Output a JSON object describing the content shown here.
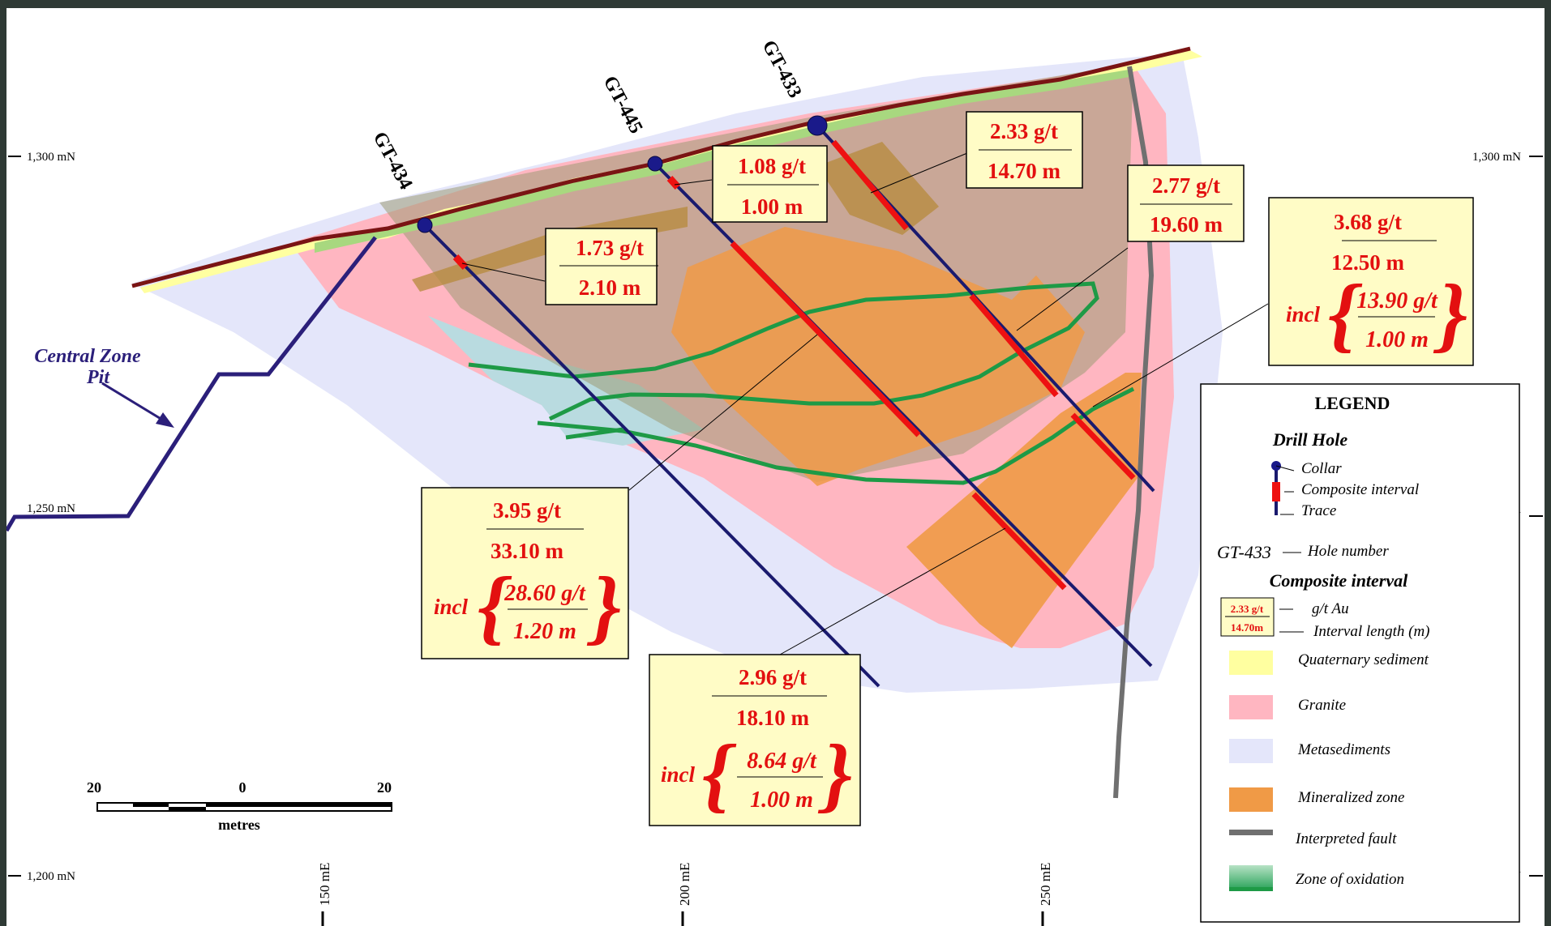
{
  "section": {
    "northings": [
      "1,300 mN",
      "1,250 mN",
      "1,200 mN"
    ],
    "eastings": [
      "150 mE",
      "200 mE",
      "250 mE"
    ],
    "pit_label": [
      "Central Zone",
      "Pit"
    ],
    "scale_bar": {
      "left": "20",
      "center": "0",
      "right": "20",
      "unit": "metres"
    }
  },
  "drill_holes": [
    {
      "id": "GT-434"
    },
    {
      "id": "GT-445"
    },
    {
      "id": "GT-433"
    }
  ],
  "intercepts": {
    "a": {
      "grade": "1.73 g/t",
      "length": "2.10 m"
    },
    "b": {
      "grade": "1.08 g/t",
      "length": "1.00 m"
    },
    "c": {
      "grade": "2.33 g/t",
      "length": "14.70 m"
    },
    "d": {
      "grade": "2.77 g/t",
      "length": "19.60 m"
    },
    "e": {
      "grade": "3.68 g/t",
      "length": "12.50 m",
      "incl": "incl",
      "incl_grade": "13.90 g/t",
      "incl_length": "1.00 m"
    },
    "f": {
      "grade": "3.95 g/t",
      "length": "33.10 m",
      "incl": "incl",
      "incl_grade": "28.60 g/t",
      "incl_length": "1.20 m"
    },
    "g": {
      "grade": "2.96 g/t",
      "length": "18.10 m",
      "incl": "incl",
      "incl_grade": "8.64 g/t",
      "incl_length": "1.00 m"
    }
  },
  "legend": {
    "title": "LEGEND",
    "drill_hole_heading": "Drill Hole",
    "collar": "Collar",
    "composite_interval": "Composite interval",
    "trace": "Trace",
    "hole_example": "GT-433",
    "hole_number": "Hole number",
    "composite_heading": "Composite interval",
    "sample_grade": "2.33 g/t",
    "sample_length": "14.70m",
    "gt_au": "g/t Au",
    "interval_length": "Interval length (m)",
    "units": [
      {
        "label": "Quaternary sediment",
        "color": "#ffffa0"
      },
      {
        "label": "Granite",
        "color": "#ffb6c1"
      },
      {
        "label": "Metasediments",
        "color": "#e4e6fa"
      },
      {
        "label": "Mineralized zone",
        "color": "#f09a46"
      },
      {
        "label": "Interpreted fault",
        "color": "#707070"
      },
      {
        "label": "Zone of oxidation",
        "color": "#1e9a46"
      }
    ]
  }
}
